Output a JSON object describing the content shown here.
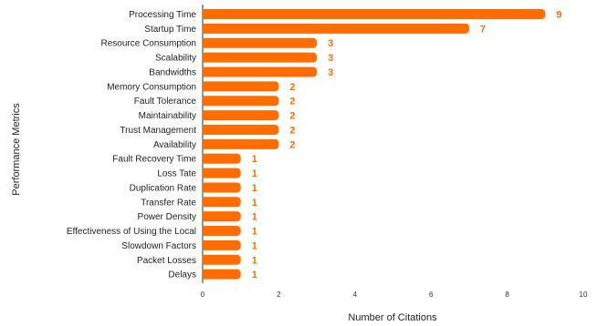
{
  "chart_data": {
    "type": "bar",
    "orientation": "horizontal",
    "title": "",
    "xlabel": "Number of Citations",
    "ylabel": "Performance Metrics",
    "xlim": [
      0,
      10
    ],
    "xticks": [
      0,
      2,
      4,
      6,
      8,
      10
    ],
    "grid": false,
    "legend": "none",
    "bar_color": "#ff6d01",
    "label_color": "#ff6d01",
    "categories": [
      "Processing Time",
      "Startup Time",
      "Resource Consumption",
      "Scalability",
      "Bandwidths",
      "Memory Consumption",
      "Fault Tolerance",
      "Maintainability",
      "Trust Management",
      "Availability",
      "Fault Recovery Time",
      "Loss Tate",
      "Duplication Rate",
      "Transfer Rate",
      "Power Density",
      "Effectiveness of Using the Local",
      "Slowdown Factors",
      "Packet Losses",
      "Delays"
    ],
    "values": [
      9,
      7,
      3,
      3,
      3,
      2,
      2,
      2,
      2,
      2,
      1,
      1,
      1,
      1,
      1,
      1,
      1,
      1,
      1
    ]
  }
}
